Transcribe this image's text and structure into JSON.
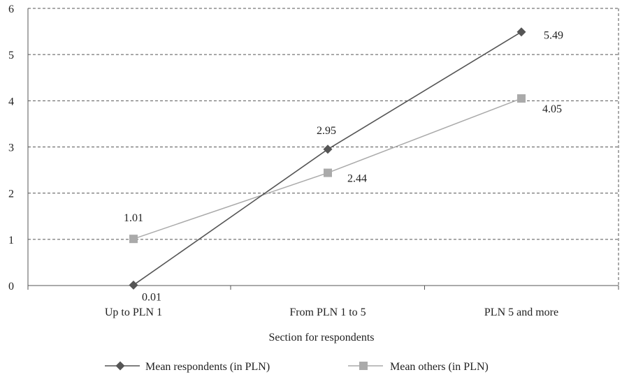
{
  "chart_data": {
    "type": "line",
    "title": "",
    "xlabel": "Section for respondents",
    "ylabel": "",
    "categories": [
      "Up to PLN 1",
      "From PLN 1 to 5",
      "PLN 5 and more"
    ],
    "ylim": [
      0,
      6
    ],
    "yticks": [
      0,
      1,
      2,
      3,
      4,
      5,
      6
    ],
    "grid": true,
    "legend_position": "bottom",
    "series": [
      {
        "name": "Mean respondents (in PLN)",
        "values": [
          0.01,
          2.95,
          5.49
        ],
        "labels": [
          "0.01",
          "2.95",
          "5.49"
        ],
        "color": "#555555",
        "marker": "diamond"
      },
      {
        "name": "Mean others (in PLN)",
        "values": [
          1.01,
          2.44,
          4.05
        ],
        "labels": [
          "1.01",
          "2.44",
          "4.05"
        ],
        "color": "#aaaaaa",
        "marker": "square"
      }
    ]
  }
}
